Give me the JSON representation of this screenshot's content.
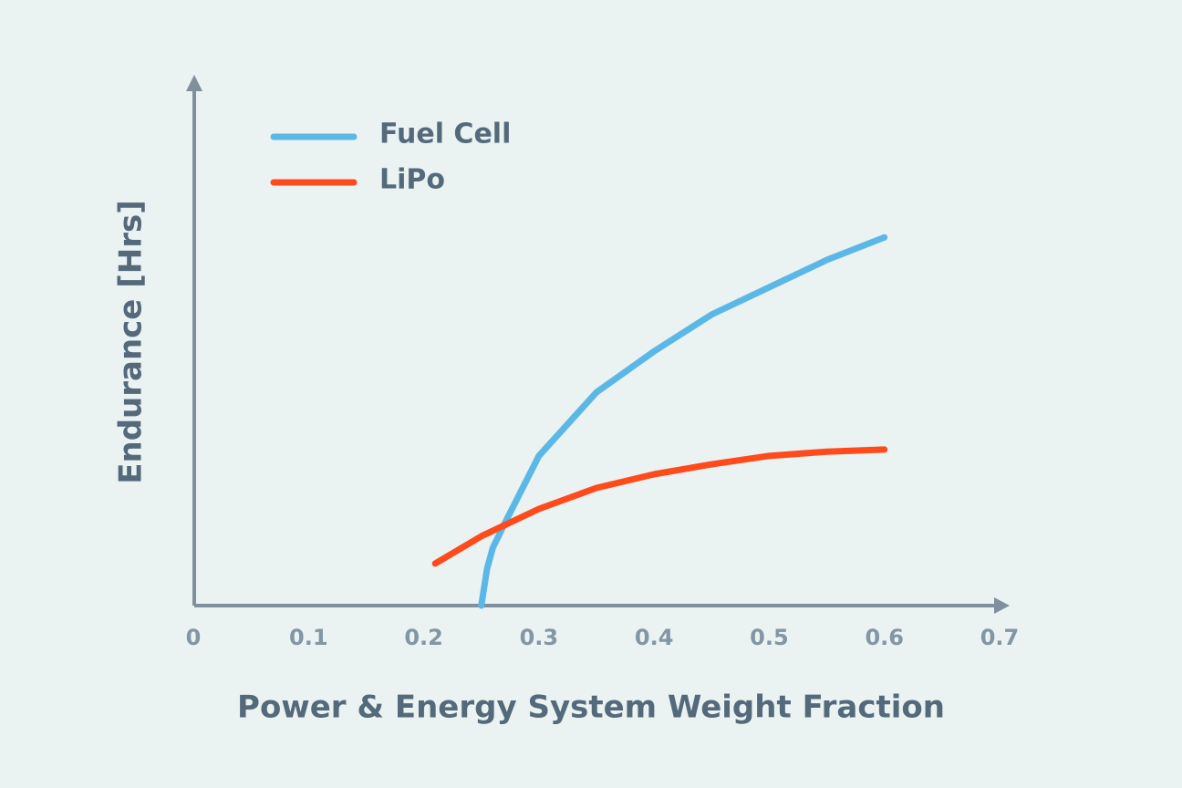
{
  "chart_data": {
    "type": "line",
    "x_label": "Power & Energy System Weight Fraction",
    "y_label": "Endurance [Hrs]",
    "xlim": [
      0,
      0.7
    ],
    "xticks": [
      0,
      0.1,
      0.2,
      0.3,
      0.4,
      0.5,
      0.6,
      0.7
    ],
    "ylim": [
      0,
      10
    ],
    "grid": false,
    "legend": "upper left",
    "series": [
      {
        "name": "Fuel Cell",
        "color": "#5bb8e6",
        "x": [
          0.25,
          0.255,
          0.26,
          0.27,
          0.3,
          0.35,
          0.4,
          0.45,
          0.5,
          0.55,
          0.6
        ],
        "values": [
          0,
          0.7,
          1.1,
          1.55,
          2.85,
          4.06,
          4.84,
          5.54,
          6.06,
          6.58,
          7.01
        ]
      },
      {
        "name": "LiPo",
        "color": "#ff4a1c",
        "x": [
          0.21,
          0.25,
          0.3,
          0.35,
          0.4,
          0.45,
          0.5,
          0.55,
          0.6
        ],
        "values": [
          0.8,
          1.32,
          1.84,
          2.24,
          2.5,
          2.69,
          2.85,
          2.93,
          2.97
        ]
      }
    ]
  }
}
